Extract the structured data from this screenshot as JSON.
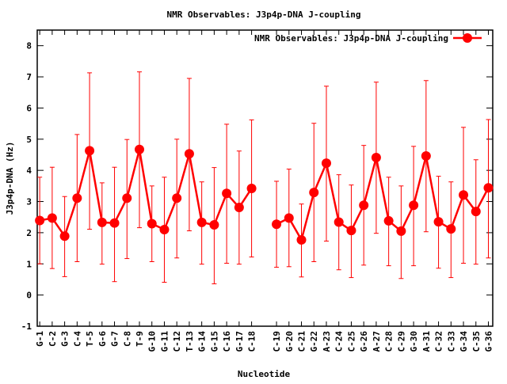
{
  "chart_data": {
    "type": "line",
    "title": "NMR Observables: J3p4p-DNA J-coupling",
    "xlabel": "Nucleotide",
    "ylabel": "J3p4p-DNA (Hz)",
    "ylim": [
      -1,
      8.5
    ],
    "xlim": [
      0.8,
      37.35
    ],
    "yticks": [
      -1,
      0,
      1,
      2,
      3,
      4,
      5,
      6,
      7,
      8
    ],
    "grid": false,
    "legend": {
      "position": "top-right",
      "entries": [
        "NMR Observables: J3p4p-DNA J-coupling"
      ]
    },
    "color": "#ff0000",
    "categories": [
      "G-1",
      "C-2",
      "G-3",
      "C-4",
      "T-5",
      "G-6",
      "G-7",
      "C-8",
      "T-9",
      "G-10",
      "G-11",
      "C-12",
      "T-13",
      "G-14",
      "G-15",
      "C-16",
      "G-17",
      "C-18",
      "C-19",
      "G-20",
      "C-21",
      "G-22",
      "A-23",
      "C-24",
      "C-25",
      "G-26",
      "A-27",
      "C-28",
      "C-29",
      "G-30",
      "A-31",
      "C-32",
      "C-33",
      "G-34",
      "C-35",
      "G-36"
    ],
    "x": [
      1,
      2,
      3,
      4,
      5,
      6,
      7,
      8,
      9,
      10,
      11,
      12,
      13,
      14,
      15,
      16,
      17,
      18,
      20,
      21,
      22,
      23,
      24,
      25,
      26,
      27,
      28,
      29,
      30,
      31,
      32,
      33,
      34,
      35,
      36,
      37
    ],
    "series": [
      {
        "name": "NMR Observables: J3p4p-DNA J-coupling",
        "segments": [
          [
            0,
            17
          ],
          [
            18,
            35
          ]
        ],
        "values": [
          2.39,
          2.47,
          1.89,
          3.11,
          4.63,
          2.33,
          2.31,
          3.11,
          4.67,
          2.29,
          2.1,
          3.11,
          4.53,
          2.33,
          2.25,
          3.26,
          2.81,
          3.42,
          2.27,
          2.47,
          1.77,
          3.29,
          4.23,
          2.34,
          2.07,
          2.88,
          4.41,
          2.38,
          2.05,
          2.88,
          4.46,
          2.35,
          2.12,
          3.21,
          2.68,
          3.44
        ],
        "err_high": [
          3.78,
          4.1,
          3.16,
          5.15,
          7.13,
          3.6,
          4.1,
          4.99,
          7.16,
          3.5,
          3.78,
          5.0,
          6.95,
          3.63,
          4.09,
          5.48,
          4.62,
          5.62,
          3.65,
          4.04,
          2.92,
          5.51,
          6.7,
          3.86,
          3.53,
          4.8,
          6.83,
          3.78,
          3.5,
          4.77,
          6.88,
          3.81,
          3.63,
          5.38,
          4.34,
          5.63
        ],
        "err_low": [
          1.0,
          0.85,
          0.59,
          1.07,
          2.11,
          0.99,
          0.43,
          1.17,
          2.16,
          1.07,
          0.41,
          1.19,
          2.06,
          0.99,
          0.36,
          1.02,
          0.99,
          1.22,
          0.89,
          0.91,
          0.58,
          1.07,
          1.73,
          0.81,
          0.56,
          0.96,
          1.98,
          0.94,
          0.53,
          0.94,
          2.03,
          0.86,
          0.56,
          1.02,
          0.99,
          1.19
        ]
      }
    ]
  }
}
